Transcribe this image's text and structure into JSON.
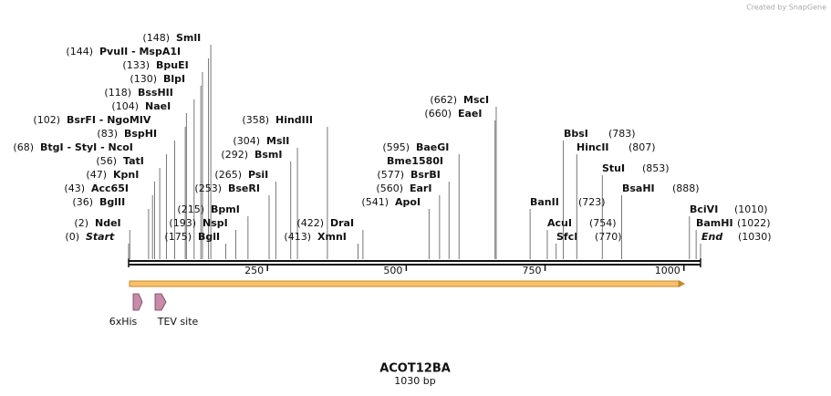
{
  "watermark": "Created by SnapGene",
  "sites": [
    {
      "name": "SmlI",
      "position": {
        "value": 148,
        "label": "(148)"
      }
    },
    {
      "name": "PvuII  - MspA1I",
      "position": {
        "value": 144,
        "label": "(144)"
      }
    },
    {
      "name": "BpuEI",
      "position": {
        "value": 133,
        "label": "(133)"
      }
    },
    {
      "name": "BlpI",
      "position": {
        "value": 130,
        "label": "(130)"
      }
    },
    {
      "name": "BssHII",
      "position": {
        "value": 118,
        "label": "(118)"
      }
    },
    {
      "name": "NaeI",
      "position": {
        "value": 104,
        "label": "(104)"
      }
    },
    {
      "name": "BsrFI  - NgoMIV",
      "position": {
        "value": 102,
        "label": "(102)"
      }
    },
    {
      "name": "BspHI",
      "position": {
        "value": 83,
        "label": "(83)"
      }
    },
    {
      "name": "BtgI  - StyI  - NcoI",
      "position": {
        "value": 68,
        "label": "(68)"
      }
    },
    {
      "name": "TatI",
      "position": {
        "value": 56,
        "label": "(56)"
      }
    },
    {
      "name": "KpnI",
      "position": {
        "value": 47,
        "label": "(47)"
      }
    },
    {
      "name": "Acc65I",
      "position": {
        "value": 43,
        "label": "(43)"
      }
    },
    {
      "name": "BglII",
      "position": {
        "value": 36,
        "label": "(36)"
      }
    },
    {
      "name": "NdeI",
      "position": {
        "value": 2,
        "label": "(2)"
      }
    },
    {
      "name": "Start",
      "position": {
        "value": 0,
        "label": "(0)"
      }
    },
    {
      "name": "BpmI",
      "position": {
        "value": 215,
        "label": "(215)"
      }
    },
    {
      "name": "NspI",
      "position": {
        "value": 193,
        "label": "(193)"
      }
    },
    {
      "name": "BglI",
      "position": {
        "value": 175,
        "label": "(175)"
      }
    },
    {
      "name": "PsiI",
      "position": {
        "value": 265,
        "label": "(265)"
      }
    },
    {
      "name": "BseRI",
      "position": {
        "value": 253,
        "label": "(253)"
      }
    },
    {
      "name": "MslI",
      "position": {
        "value": 304,
        "label": "(304)"
      }
    },
    {
      "name": "BsmI",
      "position": {
        "value": 292,
        "label": "(292)"
      }
    },
    {
      "name": "HindIII",
      "position": {
        "value": 358,
        "label": "(358)"
      }
    },
    {
      "name": "DraI",
      "position": {
        "value": 422,
        "label": "(422)"
      }
    },
    {
      "name": "XmnI",
      "position": {
        "value": 413,
        "label": "(413)"
      }
    },
    {
      "name": "MscI",
      "position": {
        "value": 662,
        "label": "(662)"
      }
    },
    {
      "name": "EaeI",
      "position": {
        "value": 660,
        "label": "(660)"
      }
    },
    {
      "name": "BaeGI",
      "position": {
        "value": 595,
        "label": "(595)"
      }
    },
    {
      "name": "Bme1580I"
    },
    {
      "name": "BsrBI",
      "position": {
        "value": 577,
        "label": "(577)"
      }
    },
    {
      "name": "EarI",
      "position": {
        "value": 560,
        "label": "(560)"
      }
    },
    {
      "name": "ApoI",
      "position": {
        "value": 541,
        "label": "(541)"
      }
    },
    {
      "name": "BanII",
      "position": {
        "value": 723,
        "label": "(723)"
      }
    },
    {
      "name": "AcuI",
      "position": {
        "value": 754,
        "label": "(754)"
      }
    },
    {
      "name": "SfcI",
      "position": {
        "value": 770,
        "label": "(770)"
      }
    },
    {
      "name": "BbsI",
      "position": {
        "value": 783,
        "label": "(783)"
      }
    },
    {
      "name": "HincII",
      "position": {
        "value": 807,
        "label": "(807)"
      }
    },
    {
      "name": "StuI",
      "position": {
        "value": 853,
        "label": "(853)"
      }
    },
    {
      "name": "BsaHI",
      "position": {
        "value": 888,
        "label": "(888)"
      }
    },
    {
      "name": "BciVI",
      "position": {
        "value": 1010,
        "label": "(1010)"
      }
    },
    {
      "name": "BamHI",
      "position": {
        "value": 1022,
        "label": "(1022)"
      }
    },
    {
      "name": "End",
      "position": {
        "value": 1030,
        "label": "(1030)"
      }
    }
  ],
  "ruler": {
    "ticks": [
      250,
      500,
      750,
      1000
    ]
  },
  "features": [
    "6xHis",
    "TEV site"
  ],
  "title": "ACOT12BA",
  "length": {
    "value": 1030,
    "label": "1030 bp"
  }
}
